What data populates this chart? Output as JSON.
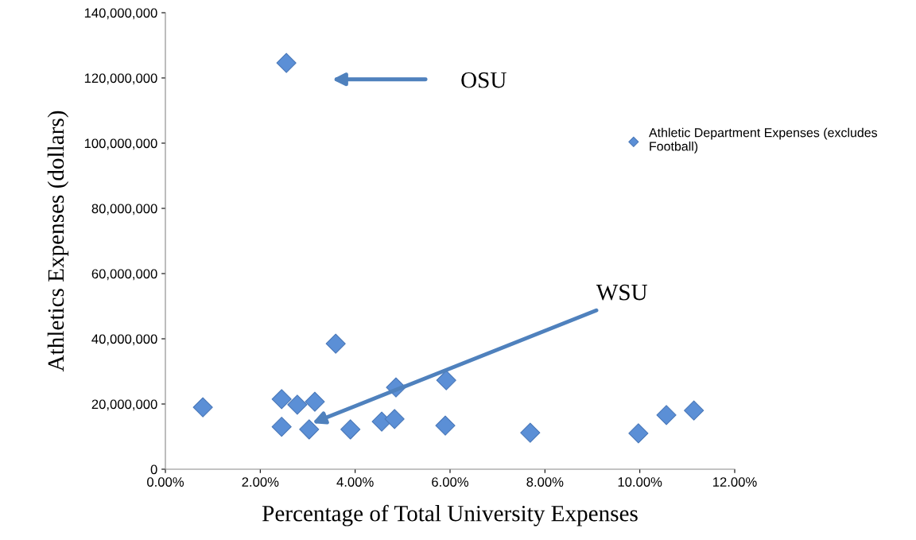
{
  "chart_data": {
    "type": "scatter",
    "xlabel": "Percentage of Total University Expenses",
    "ylabel": "Athletics Expenses (dollars)",
    "series": [
      {
        "name": "Athletic Department Expenses (excludes Football)",
        "color": "#5b8fd6",
        "x": [
          0.79,
          2.45,
          2.45,
          2.78,
          3.15,
          3.03,
          3.59,
          3.9,
          4.56,
          4.83,
          4.86,
          5.92,
          5.9,
          7.69,
          9.97,
          10.56,
          11.14,
          2.55
        ],
        "values": [
          19000000,
          21500000,
          13000000,
          19800000,
          20700000,
          12200000,
          38500000,
          12200000,
          14600000,
          15400000,
          25100000,
          27300000,
          13400000,
          11200000,
          11000000,
          16600000,
          18000000,
          124600000
        ]
      }
    ],
    "annotations": [
      "OSU",
      "WSU"
    ],
    "xlim": [
      0,
      12
    ],
    "ylim": [
      0,
      140000000
    ],
    "xticks": [
      {
        "value": 0,
        "label": "0.00%"
      },
      {
        "value": 2,
        "label": "2.00%"
      },
      {
        "value": 4,
        "label": "4.00%"
      },
      {
        "value": 6,
        "label": "6.00%"
      },
      {
        "value": 8,
        "label": "8.00%"
      },
      {
        "value": 10,
        "label": "10.00%"
      },
      {
        "value": 12,
        "label": "12.00%"
      }
    ],
    "yticks": [
      {
        "value": 0,
        "label": "0"
      },
      {
        "value": 20000000,
        "label": "20,000,000"
      },
      {
        "value": 40000000,
        "label": "40,000,000"
      },
      {
        "value": 60000000,
        "label": "60,000,000"
      },
      {
        "value": 80000000,
        "label": "80,000,000"
      },
      {
        "value": 100000000,
        "label": "100,000,000"
      },
      {
        "value": 120000000,
        "label": "120,000,000"
      },
      {
        "value": 140000000,
        "label": "140,000,000"
      }
    ],
    "grid": false,
    "legend": "right",
    "marker": "diamond"
  }
}
